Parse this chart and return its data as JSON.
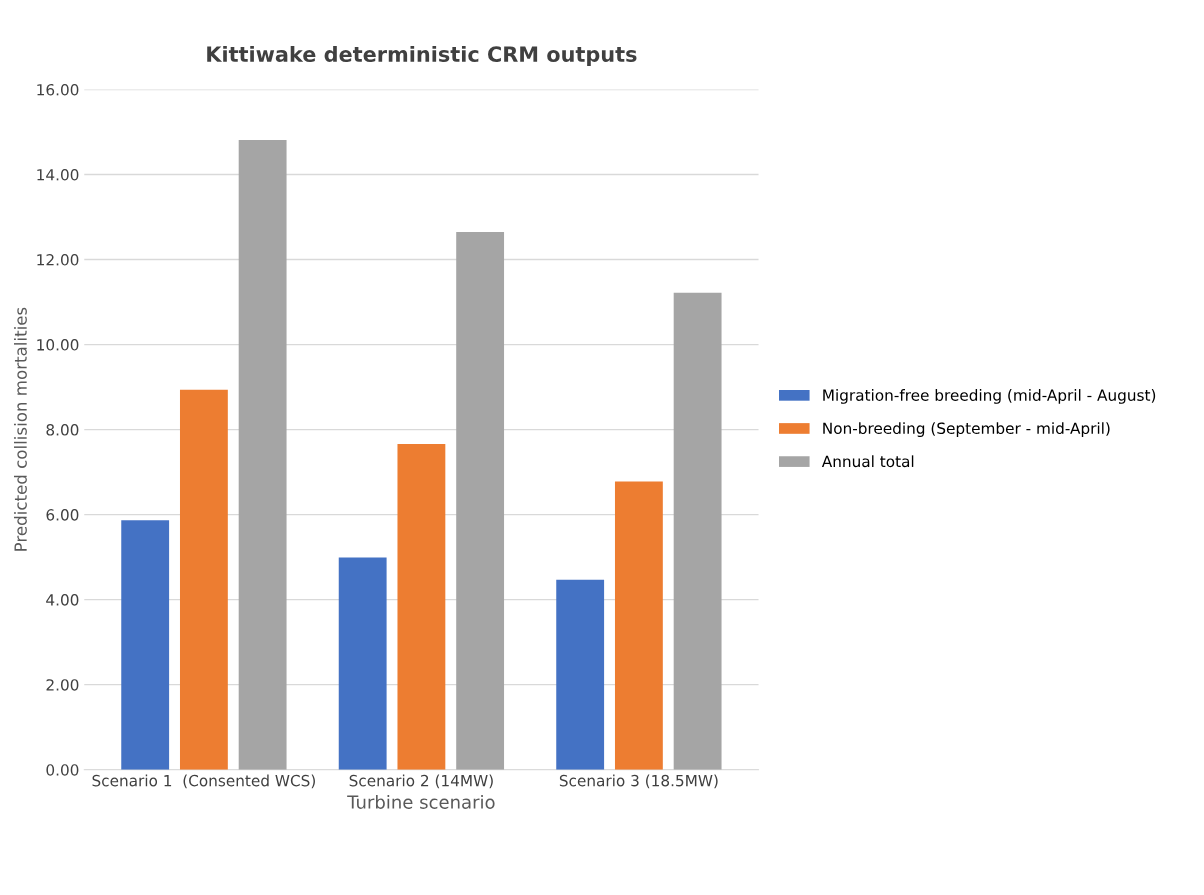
{
  "chart_data": {
    "type": "bar",
    "title": "Kittiwake deterministic CRM outputs",
    "xlabel": "Turbine scenario",
    "ylabel": "Predicted collision mortalities",
    "categories": [
      "Scenario 1  (Consented WCS)",
      "Scenario 2 (14MW)",
      "Scenario 3 (18.5MW)"
    ],
    "series": [
      {
        "name": "Migration-free breeding (mid-April - August)",
        "color": "#4472c4",
        "values": [
          5.87,
          4.99,
          4.47
        ]
      },
      {
        "name": "Non-breeding (September - mid-April)",
        "color": "#ed7d31",
        "values": [
          8.94,
          7.66,
          6.78
        ]
      },
      {
        "name": "Annual total",
        "color": "#a5a5a5",
        "values": [
          14.81,
          12.65,
          11.22
        ]
      }
    ],
    "ylim": [
      0,
      16
    ],
    "yticks": [
      {
        "value": 0,
        "label": "0.00"
      },
      {
        "value": 2,
        "label": "2.00"
      },
      {
        "value": 4,
        "label": "4.00"
      },
      {
        "value": 6,
        "label": "6.00"
      },
      {
        "value": 8,
        "label": "8.00"
      },
      {
        "value": 10,
        "label": "10.00"
      },
      {
        "value": 12,
        "label": "12.00"
      },
      {
        "value": 14,
        "label": "14.00"
      },
      {
        "value": 16,
        "label": "16.00"
      }
    ],
    "grid": "y",
    "legend": "right"
  }
}
